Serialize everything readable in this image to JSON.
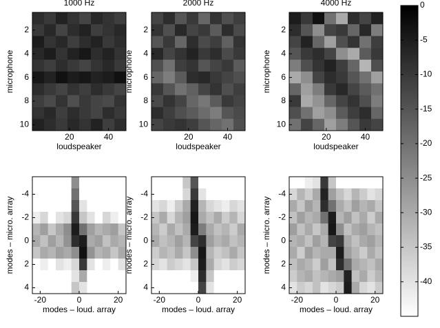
{
  "chart_data": [
    {
      "type": "heatmap",
      "title": "1000 Hz",
      "xlabel": "loudspeaker",
      "ylabel": "microphone",
      "xlim": [
        1,
        49
      ],
      "ylim": [
        0.5,
        10.5
      ],
      "xticks": [
        20,
        40
      ],
      "yticks": [
        2,
        4,
        6,
        8,
        10
      ],
      "x": [
        4,
        10,
        16,
        22,
        28,
        34,
        40,
        46
      ],
      "y": [
        1,
        2,
        3,
        4,
        5,
        6,
        7,
        8,
        9,
        10
      ],
      "z": [
        [
          -8,
          -10,
          -6,
          -9,
          -12,
          -7,
          -9,
          -11
        ],
        [
          -10,
          -7,
          -12,
          -8,
          -6,
          -11,
          -9,
          -7
        ],
        [
          -5,
          -9,
          -7,
          -11,
          -8,
          -6,
          -10,
          -8
        ],
        [
          -7,
          -5,
          -9,
          -6,
          -4,
          -8,
          -6,
          -9
        ],
        [
          -9,
          -11,
          -8,
          -10,
          -12,
          -9,
          -7,
          -10
        ],
        [
          -4,
          -6,
          -3,
          -5,
          -4,
          -6,
          -5,
          -3
        ],
        [
          -8,
          -10,
          -12,
          -9,
          -11,
          -8,
          -10,
          -12
        ],
        [
          -11,
          -13,
          -9,
          -14,
          -10,
          -12,
          -13,
          -9
        ],
        [
          -9,
          -7,
          -11,
          -8,
          -10,
          -12,
          -8,
          -10
        ],
        [
          -6,
          -8,
          -10,
          -7,
          -9,
          -6,
          -11,
          -8
        ]
      ]
    },
    {
      "type": "heatmap",
      "title": "2000 Hz",
      "xlabel": "loudspeaker",
      "ylabel": "microphone",
      "xlim": [
        1,
        49
      ],
      "ylim": [
        0.5,
        10.5
      ],
      "xticks": [
        20,
        40
      ],
      "yticks": [
        2,
        4,
        6,
        8,
        10
      ],
      "x": [
        4,
        10,
        16,
        22,
        28,
        34,
        40,
        46
      ],
      "y": [
        1,
        2,
        3,
        4,
        5,
        6,
        7,
        8,
        9,
        10
      ],
      "z": [
        [
          -12,
          -8,
          -15,
          -10,
          -18,
          -9,
          -14,
          -11
        ],
        [
          -9,
          -14,
          -7,
          -12,
          -10,
          -16,
          -8,
          -13
        ],
        [
          -15,
          -10,
          -18,
          -8,
          -13,
          -11,
          -17,
          -9
        ],
        [
          -7,
          -12,
          -9,
          -6,
          -10,
          -8,
          -13,
          -10
        ],
        [
          -14,
          -20,
          -11,
          -9,
          -15,
          -12,
          -10,
          -16
        ],
        [
          -18,
          -22,
          -16,
          -8,
          -7,
          -10,
          -12,
          -14
        ],
        [
          -10,
          -15,
          -20,
          -17,
          -12,
          -9,
          -14,
          -11
        ],
        [
          -13,
          -9,
          -12,
          -18,
          -21,
          -16,
          -10,
          -12
        ],
        [
          -8,
          -11,
          -14,
          -16,
          -19,
          -22,
          -15,
          -13
        ],
        [
          -12,
          -10,
          -9,
          -11,
          -15,
          -18,
          -20,
          -14
        ]
      ]
    },
    {
      "type": "heatmap",
      "title": "4000 Hz",
      "xlabel": "loudspeaker",
      "ylabel": "microphone",
      "xlim": [
        1,
        49
      ],
      "ylim": [
        0.5,
        10.5
      ],
      "xticks": [
        20,
        40
      ],
      "yticks": [
        2,
        4,
        6,
        8,
        10
      ],
      "x": [
        4,
        10,
        16,
        22,
        28,
        34,
        40,
        46
      ],
      "y": [
        1,
        2,
        3,
        4,
        5,
        6,
        7,
        8,
        9,
        10
      ],
      "z": [
        [
          -5,
          -10,
          -3,
          -20,
          -30,
          -8,
          -12,
          -6
        ],
        [
          -8,
          -15,
          -25,
          -12,
          -10,
          -18,
          -7,
          -22
        ],
        [
          -12,
          -6,
          -18,
          -28,
          -14,
          -9,
          -20,
          -11
        ],
        [
          -15,
          -10,
          -8,
          -12,
          -25,
          -30,
          -16,
          -10
        ],
        [
          -22,
          -14,
          -9,
          -6,
          -11,
          -18,
          -32,
          -14
        ],
        [
          -30,
          -25,
          -12,
          -8,
          -10,
          -15,
          -20,
          -28
        ],
        [
          -18,
          -28,
          -22,
          -10,
          -7,
          -12,
          -16,
          -20
        ],
        [
          -10,
          -30,
          -26,
          -18,
          -12,
          -9,
          -14,
          -22
        ],
        [
          -14,
          -20,
          -28,
          -25,
          -16,
          -11,
          -8,
          -18
        ],
        [
          -20,
          -12,
          -18,
          -28,
          -22,
          -15,
          -10,
          -12
        ]
      ]
    },
    {
      "type": "heatmap",
      "xlabel": "modes – loud. array",
      "ylabel": "modes – micro. array",
      "xlim": [
        -24,
        24
      ],
      "ylim": [
        -5.5,
        4.5
      ],
      "xticks": [
        -20,
        0,
        20
      ],
      "yticks": [
        -4,
        -2,
        0,
        2,
        4
      ],
      "x": [
        -22,
        -18,
        -14,
        -10,
        -6,
        -2,
        2,
        6,
        10,
        14,
        18,
        22
      ],
      "y": [
        -5,
        -4,
        -3,
        -2,
        -1,
        0,
        1,
        2,
        3,
        4
      ],
      "z": [
        [
          -45,
          -45,
          -45,
          -45,
          -45,
          -25,
          -45,
          -45,
          -45,
          -45,
          -45,
          -45
        ],
        [
          -45,
          -45,
          -45,
          -45,
          -45,
          -20,
          -45,
          -45,
          -45,
          -45,
          -45,
          -45
        ],
        [
          -45,
          -45,
          -45,
          -45,
          -45,
          -15,
          -40,
          -45,
          -45,
          -45,
          -45,
          -45
        ],
        [
          -42,
          -38,
          -45,
          -40,
          -38,
          -10,
          -35,
          -40,
          -45,
          -38,
          -42,
          -45
        ],
        [
          -32,
          -28,
          -35,
          -30,
          -25,
          -5,
          -20,
          -28,
          -32,
          -30,
          -28,
          -35
        ],
        [
          -30,
          -34,
          -28,
          -32,
          -26,
          -8,
          -5,
          -30,
          -28,
          -34,
          -30,
          -32
        ],
        [
          -35,
          -30,
          -32,
          -28,
          -30,
          -25,
          -3,
          -26,
          -32,
          -30,
          -35,
          -30
        ],
        [
          -45,
          -42,
          -45,
          -40,
          -42,
          -38,
          -10,
          -40,
          -45,
          -42,
          -45,
          -40
        ],
        [
          -45,
          -45,
          -45,
          -45,
          -45,
          -40,
          -30,
          -45,
          -45,
          -45,
          -45,
          -45
        ],
        [
          -45,
          -45,
          -45,
          -45,
          -45,
          -35,
          -40,
          -45,
          -45,
          -45,
          -45,
          -45
        ]
      ]
    },
    {
      "type": "heatmap",
      "xlabel": "modes – loud. array",
      "ylabel": "modes – micro. array",
      "xlim": [
        -24,
        24
      ],
      "ylim": [
        -5.5,
        4.5
      ],
      "xticks": [
        -20,
        0,
        20
      ],
      "yticks": [
        -4,
        -2,
        0,
        2,
        4
      ],
      "x": [
        -22,
        -18,
        -14,
        -10,
        -6,
        -2,
        2,
        6,
        10,
        14,
        18,
        22
      ],
      "y": [
        -5,
        -4,
        -3,
        -2,
        -1,
        0,
        1,
        2,
        3,
        4
      ],
      "z": [
        [
          -45,
          -45,
          -45,
          -45,
          -35,
          -15,
          -45,
          -45,
          -45,
          -45,
          -45,
          -45
        ],
        [
          -45,
          -45,
          -45,
          -45,
          -38,
          -10,
          -40,
          -45,
          -45,
          -45,
          -45,
          -45
        ],
        [
          -40,
          -38,
          -42,
          -36,
          -30,
          -6,
          -32,
          -38,
          -40,
          -42,
          -38,
          -40
        ],
        [
          -35,
          -30,
          -38,
          -32,
          -28,
          -4,
          -30,
          -34,
          -30,
          -36,
          -32,
          -38
        ],
        [
          -32,
          -36,
          -30,
          -34,
          -30,
          -5,
          -22,
          -30,
          -34,
          -32,
          -36,
          -30
        ],
        [
          -30,
          -34,
          -32,
          -28,
          -32,
          -12,
          -8,
          -28,
          -32,
          -30,
          -34,
          -32
        ],
        [
          -36,
          -32,
          -34,
          -30,
          -35,
          -25,
          -4,
          -32,
          -36,
          -34,
          -30,
          -35
        ],
        [
          -38,
          -40,
          -36,
          -38,
          -40,
          -35,
          -5,
          -30,
          -38,
          -40,
          -36,
          -38
        ],
        [
          -45,
          -45,
          -45,
          -45,
          -45,
          -42,
          -8,
          -35,
          -45,
          -45,
          -45,
          -45
        ],
        [
          -45,
          -45,
          -45,
          -45,
          -45,
          -45,
          -12,
          -40,
          -45,
          -45,
          -45,
          -45
        ]
      ]
    },
    {
      "type": "heatmap",
      "xlabel": "modes – loud. array",
      "ylabel": "modes – micro. array",
      "xlim": [
        -24,
        24
      ],
      "ylim": [
        -5.5,
        4.5
      ],
      "xticks": [
        -20,
        0,
        20
      ],
      "yticks": [
        -4,
        -2,
        0,
        2,
        4
      ],
      "x": [
        -22,
        -18,
        -14,
        -10,
        -6,
        -2,
        2,
        6,
        10,
        14,
        18,
        22
      ],
      "y": [
        -5,
        -4,
        -3,
        -2,
        -1,
        0,
        1,
        2,
        3,
        4
      ],
      "z": [
        [
          -45,
          -45,
          -42,
          -40,
          -10,
          -35,
          -45,
          -45,
          -45,
          -45,
          -45,
          -45
        ],
        [
          -38,
          -32,
          -36,
          -30,
          -6,
          -28,
          -34,
          -38,
          -32,
          -36,
          -40,
          -38
        ],
        [
          -30,
          -35,
          -28,
          -32,
          -8,
          -20,
          -30,
          -34,
          -28,
          -32,
          -30,
          -35
        ],
        [
          -34,
          -28,
          -32,
          -30,
          -20,
          -5,
          -32,
          -28,
          -34,
          -30,
          -36,
          -30
        ],
        [
          -28,
          -34,
          -30,
          -35,
          -30,
          -4,
          -25,
          -34,
          -30,
          -28,
          -32,
          -34
        ],
        [
          -32,
          -30,
          -34,
          -28,
          -32,
          -12,
          -10,
          -30,
          -34,
          -30,
          -28,
          -32
        ],
        [
          -30,
          -36,
          -28,
          -32,
          -30,
          -30,
          -5,
          -28,
          -32,
          -36,
          -30,
          -34
        ],
        [
          -34,
          -30,
          -32,
          -36,
          -28,
          -34,
          -8,
          -20,
          -30,
          -32,
          -34,
          -30
        ],
        [
          -36,
          -32,
          -30,
          -34,
          -32,
          -30,
          -28,
          -6,
          -34,
          -30,
          -36,
          -32
        ],
        [
          -40,
          -36,
          -38,
          -34,
          -40,
          -38,
          -36,
          -5,
          -30,
          -38,
          -40,
          -36
        ]
      ]
    },
    {
      "type": "colorbar",
      "ylim": [
        -45,
        0
      ],
      "yticks": [
        0,
        -5,
        -10,
        -15,
        -20,
        -25,
        -30,
        -35,
        -40
      ]
    }
  ]
}
